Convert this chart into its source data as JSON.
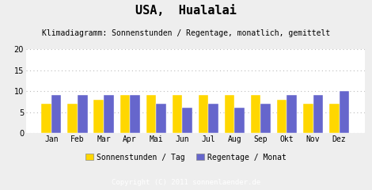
{
  "title": "USA,  Hualalai",
  "subtitle": "Klimadiagramm: Sonnenstunden / Regentage, monatlich, gemittelt",
  "months": [
    "Jan",
    "Feb",
    "Mar",
    "Apr",
    "Mai",
    "Jun",
    "Jul",
    "Aug",
    "Sep",
    "Okt",
    "Nov",
    "Dez"
  ],
  "sonnenstunden": [
    7,
    7,
    8,
    9,
    9,
    9,
    9,
    9,
    9,
    8,
    7,
    7
  ],
  "regentage": [
    9,
    9,
    9,
    9,
    7,
    6,
    7,
    6,
    7,
    9,
    9,
    10
  ],
  "color_sonnenstunden": "#FFD700",
  "color_regentage": "#6666CC",
  "ylim": [
    0,
    20
  ],
  "yticks": [
    0,
    5,
    10,
    15,
    20
  ],
  "legend_sonnenstunden": "Sonnenstunden / Tag",
  "legend_regentage": "Regentage / Monat",
  "copyright": "Copyright (C) 2011 sonnenlaender.de",
  "bg_color": "#EEEEEE",
  "plot_bg_color": "#FFFFFF",
  "footer_bg_color": "#999999",
  "bar_width": 0.38,
  "title_fontsize": 11,
  "subtitle_fontsize": 7,
  "axis_fontsize": 7,
  "legend_fontsize": 7,
  "copyright_fontsize": 6.5
}
